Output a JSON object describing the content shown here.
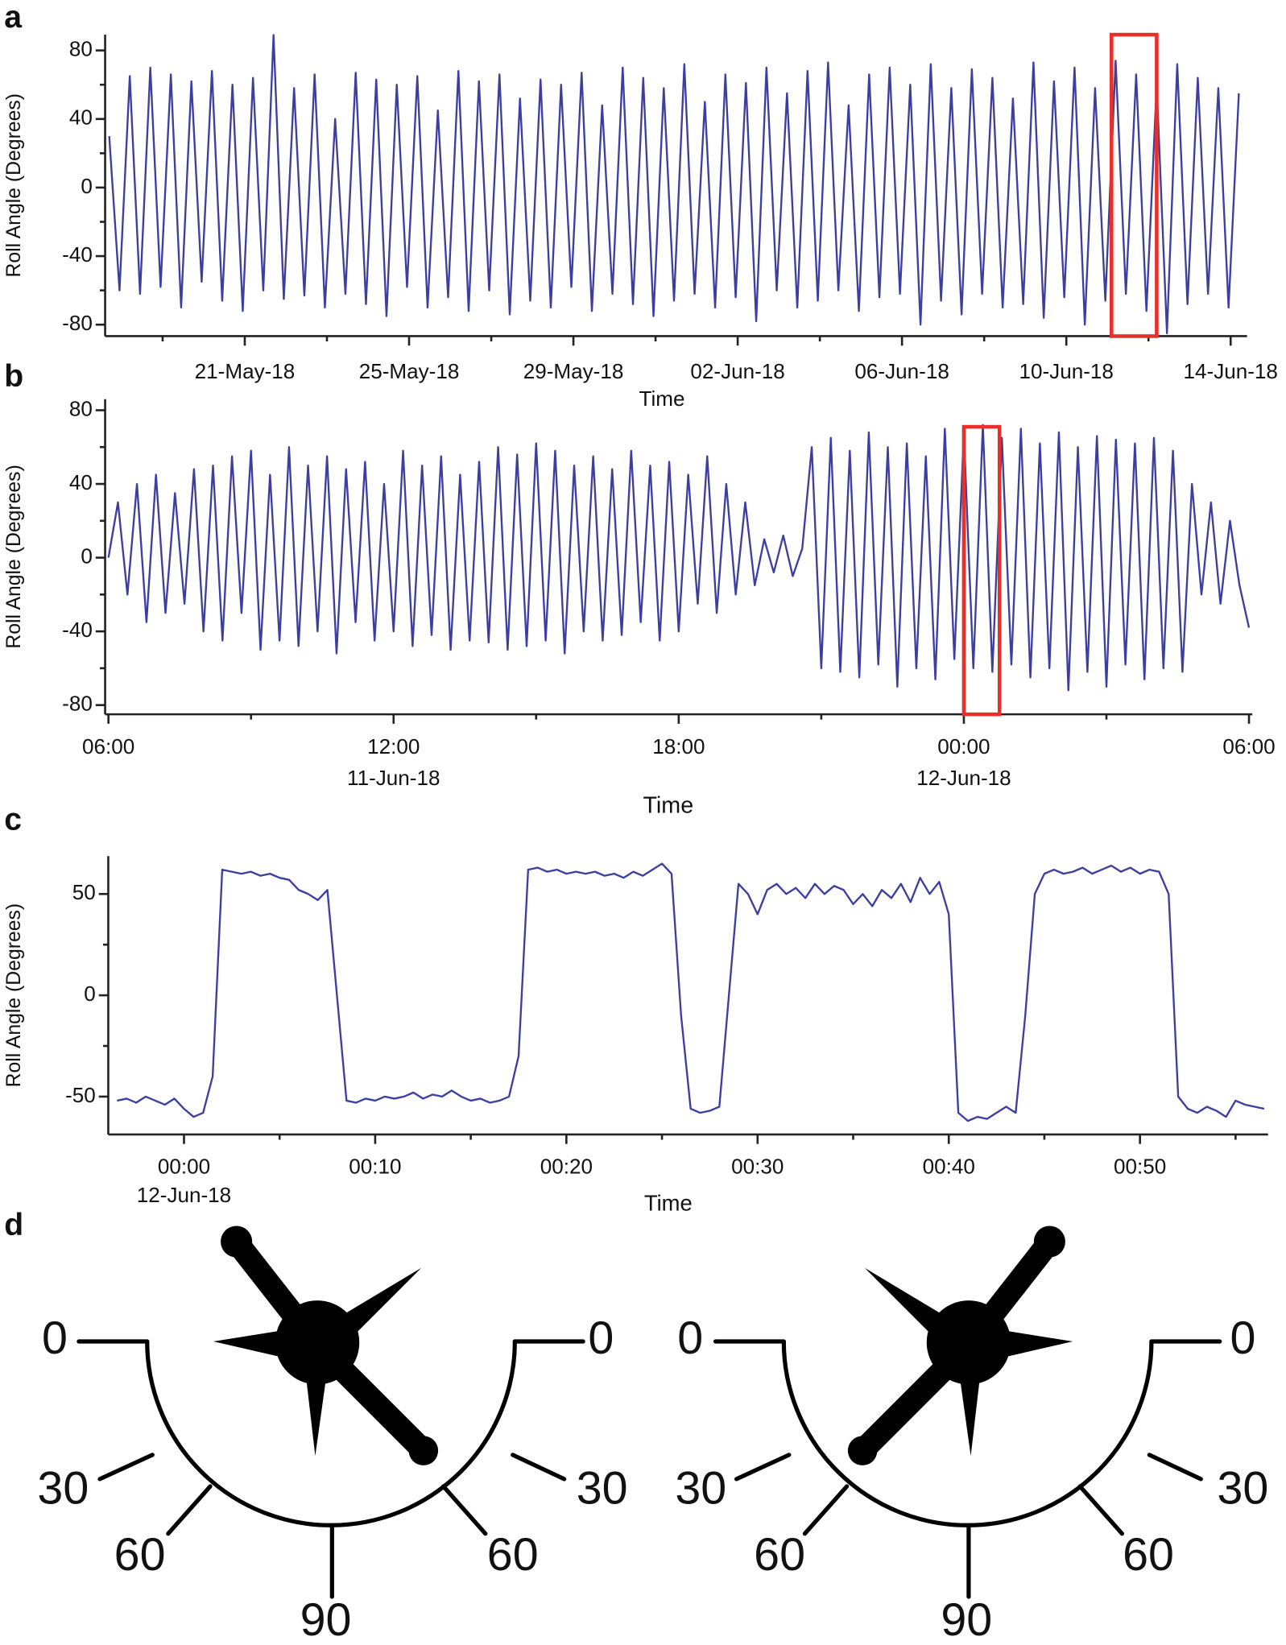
{
  "panel_labels": [
    "a",
    "b",
    "c",
    "d"
  ],
  "chart_data": [
    {
      "type": "line",
      "y_label": "Roll Angle (Degrees)",
      "x_label": "Time",
      "color": "#3c3ea0",
      "xlim": [
        17.6,
        45.4
      ],
      "ylim": [
        -86.7,
        89.2
      ],
      "xticks": [
        {
          "value": 21,
          "label": "21-May-18"
        },
        {
          "value": 25,
          "label": "25-May-18"
        },
        {
          "value": 29,
          "label": "29-May-18"
        },
        {
          "value": 33,
          "label": "02-Jun-18"
        },
        {
          "value": 37,
          "label": "06-Jun-18"
        },
        {
          "value": 41,
          "label": "10-Jun-18"
        },
        {
          "value": 45,
          "label": "14-Jun-18"
        }
      ],
      "xminorticks": [
        19,
        23,
        27,
        31,
        35,
        39,
        43
      ],
      "yticks": [
        -80,
        -40,
        0,
        40,
        80
      ],
      "yminorticks": [
        -60,
        -20,
        20,
        60
      ],
      "highlight": {
        "xlim": [
          42.1,
          43.2
        ],
        "color": "#e8302a"
      },
      "x": [
        17.7,
        17.95,
        18.2,
        18.45,
        18.7,
        18.95,
        19.2,
        19.45,
        19.7,
        19.95,
        20.2,
        20.45,
        20.7,
        20.95,
        21.2,
        21.45,
        21.7,
        21.95,
        22.2,
        22.45,
        22.7,
        22.95,
        23.2,
        23.45,
        23.7,
        23.95,
        24.2,
        24.45,
        24.7,
        24.95,
        25.2,
        25.45,
        25.7,
        25.95,
        26.2,
        26.45,
        26.7,
        26.95,
        27.2,
        27.45,
        27.7,
        27.95,
        28.2,
        28.45,
        28.7,
        28.95,
        29.2,
        29.45,
        29.7,
        29.95,
        30.2,
        30.45,
        30.7,
        30.95,
        31.2,
        31.45,
        31.7,
        31.95,
        32.2,
        32.45,
        32.7,
        32.95,
        33.2,
        33.45,
        33.7,
        33.95,
        34.2,
        34.45,
        34.7,
        34.95,
        35.2,
        35.45,
        35.7,
        35.95,
        36.2,
        36.45,
        36.7,
        36.95,
        37.2,
        37.45,
        37.7,
        37.95,
        38.2,
        38.45,
        38.7,
        38.95,
        39.2,
        39.45,
        39.7,
        39.95,
        40.2,
        40.45,
        40.7,
        40.95,
        41.2,
        41.45,
        41.7,
        41.95,
        42.2,
        42.45,
        42.7,
        42.95,
        43.2,
        43.45,
        43.7,
        43.95,
        44.2,
        44.45,
        44.7,
        44.95,
        45.2
      ],
      "values": [
        30,
        -60,
        65,
        -62,
        70,
        -58,
        66,
        -70,
        62,
        -55,
        68,
        -66,
        60,
        -72,
        64,
        -60,
        89,
        -65,
        58,
        -63,
        66,
        -70,
        40,
        -62,
        67,
        -68,
        63,
        -75,
        60,
        -58,
        65,
        -70,
        45,
        -64,
        68,
        -72,
        62,
        -60,
        66,
        -74,
        52,
        -66,
        63,
        -70,
        60,
        -58,
        67,
        -72,
        48,
        -62,
        70,
        -68,
        64,
        -75,
        58,
        -66,
        72,
        -62,
        50,
        -70,
        66,
        -64,
        61,
        -78,
        70,
        -60,
        55,
        -70,
        68,
        -66,
        73,
        -60,
        48,
        -72,
        66,
        -64,
        70,
        -62,
        60,
        -80,
        72,
        -66,
        58,
        -74,
        69,
        -62,
        64,
        -70,
        52,
        -68,
        73,
        -76,
        62,
        -64,
        70,
        -80,
        58,
        -66,
        74,
        -62,
        66,
        -72,
        60,
        -85,
        72,
        -68,
        64,
        -62,
        58,
        -70,
        55
      ]
    },
    {
      "type": "line",
      "y_label": "Roll Angle (Degrees)",
      "x_label": "Time",
      "color": "#3c3ea0",
      "xlim": [
        5.93,
        30.07
      ],
      "ylim": [
        -85,
        86
      ],
      "xticks": [
        {
          "value": 6,
          "label": "06:00"
        },
        {
          "value": 12,
          "label": "12:00"
        },
        {
          "value": 18,
          "label": "18:00"
        },
        {
          "value": 24,
          "label": "00:00"
        },
        {
          "value": 30,
          "label": "06:00"
        }
      ],
      "date_labels": [
        {
          "value": 12,
          "label": "11-Jun-18"
        },
        {
          "value": 24,
          "label": "12-Jun-18"
        }
      ],
      "xminorticks": [
        9,
        15,
        21,
        27
      ],
      "yticks": [
        -80,
        -40,
        0,
        40,
        80
      ],
      "yminorticks": [
        -60,
        -20,
        20,
        60
      ],
      "highlight": {
        "xlim": [
          24.0,
          24.75
        ],
        "ylim": [
          -85,
          71
        ],
        "color": "#e8302a"
      },
      "x": [
        6,
        6.2,
        6.4,
        6.6,
        6.8,
        7,
        7.2,
        7.4,
        7.6,
        7.8,
        8,
        8.2,
        8.4,
        8.6,
        8.8,
        9,
        9.2,
        9.4,
        9.6,
        9.8,
        10,
        10.2,
        10.4,
        10.6,
        10.8,
        11,
        11.2,
        11.4,
        11.6,
        11.8,
        12,
        12.2,
        12.4,
        12.6,
        12.8,
        13,
        13.2,
        13.4,
        13.6,
        13.8,
        14,
        14.2,
        14.4,
        14.6,
        14.8,
        15,
        15.2,
        15.4,
        15.6,
        15.8,
        16,
        16.2,
        16.4,
        16.6,
        16.8,
        17,
        17.2,
        17.4,
        17.6,
        17.8,
        18,
        18.2,
        18.4,
        18.6,
        18.8,
        19,
        19.2,
        19.4,
        19.6,
        19.8,
        20,
        20.2,
        20.4,
        20.6,
        20.8,
        21,
        21.2,
        21.4,
        21.6,
        21.8,
        22,
        22.2,
        22.4,
        22.6,
        22.8,
        23,
        23.2,
        23.4,
        23.6,
        23.8,
        24,
        24.2,
        24.4,
        24.6,
        24.8,
        25,
        25.2,
        25.4,
        25.6,
        25.8,
        26,
        26.2,
        26.4,
        26.6,
        26.8,
        27,
        27.2,
        27.4,
        27.6,
        27.8,
        28,
        28.2,
        28.4,
        28.6,
        28.8,
        29,
        29.2,
        29.4,
        29.6,
        29.8,
        30
      ],
      "values": [
        0,
        30,
        -20,
        40,
        -35,
        45,
        -30,
        35,
        -25,
        48,
        -40,
        50,
        -45,
        55,
        -30,
        58,
        -50,
        45,
        -45,
        60,
        -48,
        50,
        -40,
        55,
        -52,
        48,
        -35,
        52,
        -45,
        40,
        -40,
        58,
        -48,
        50,
        -42,
        55,
        -50,
        45,
        -45,
        52,
        -46,
        60,
        -50,
        56,
        -48,
        62,
        -45,
        58,
        -52,
        50,
        -40,
        55,
        -45,
        48,
        -42,
        58,
        -35,
        50,
        -45,
        52,
        -40,
        45,
        -25,
        55,
        -30,
        40,
        -20,
        30,
        -15,
        10,
        -8,
        12,
        -10,
        5,
        60,
        -60,
        65,
        -62,
        58,
        -65,
        68,
        -58,
        60,
        -70,
        62,
        -60,
        55,
        -66,
        70,
        -55,
        68,
        -60,
        72,
        -62,
        65,
        -58,
        70,
        -65,
        62,
        -60,
        68,
        -72,
        60,
        -62,
        66,
        -70,
        64,
        -58,
        62,
        -66,
        65,
        -60,
        58,
        -62,
        40,
        -20,
        30,
        -25,
        20,
        -15,
        -38
      ]
    },
    {
      "type": "line",
      "y_label": "Roll Angle (Degrees)",
      "x_label": "Time",
      "color": "#3c3ea0",
      "xlim": [
        -3.96,
        56.7
      ],
      "ylim": [
        -68.7,
        68.7
      ],
      "xticks": [
        {
          "value": 0,
          "label": "00:00"
        },
        {
          "value": 10,
          "label": "00:10"
        },
        {
          "value": 20,
          "label": "00:20"
        },
        {
          "value": 30,
          "label": "00:30"
        },
        {
          "value": 40,
          "label": "00:40"
        },
        {
          "value": 50,
          "label": "00:50"
        }
      ],
      "date_labels": [
        {
          "value": 0,
          "label": "12-Jun-18"
        }
      ],
      "xminorticks": [
        5,
        15,
        25,
        35,
        45,
        55
      ],
      "yticks": [
        -50,
        0,
        50
      ],
      "yminorticks": [
        -25,
        25
      ],
      "x": [
        -3.5,
        -3,
        -2.5,
        -2,
        -1.5,
        -1,
        -0.5,
        0,
        0.5,
        1,
        1.5,
        2,
        2.5,
        3,
        3.5,
        4,
        4.5,
        5,
        5.5,
        6,
        6.5,
        7,
        7.5,
        8,
        8.5,
        9,
        9.5,
        10,
        10.5,
        11,
        11.5,
        12,
        12.5,
        13,
        13.5,
        14,
        14.5,
        15,
        15.5,
        16,
        16.5,
        17,
        17.5,
        18,
        18.5,
        19,
        19.5,
        20,
        20.5,
        21,
        21.5,
        22,
        22.5,
        23,
        23.5,
        24,
        24.5,
        25,
        25.5,
        26,
        26.5,
        27,
        27.5,
        28,
        28.5,
        29,
        29.5,
        30,
        30.5,
        31,
        31.5,
        32,
        32.5,
        33,
        33.5,
        34,
        34.5,
        35,
        35.5,
        36,
        36.5,
        37,
        37.5,
        38,
        38.5,
        39,
        39.5,
        40,
        40.5,
        41,
        41.5,
        42,
        42.5,
        43,
        43.5,
        44,
        44.5,
        45,
        45.5,
        46,
        46.5,
        47,
        47.5,
        48,
        48.5,
        49,
        49.5,
        50,
        50.5,
        51,
        51.5,
        52,
        52.5,
        53,
        53.5,
        54,
        54.5,
        55,
        55.5,
        56,
        56.5
      ],
      "values": [
        -52,
        -51,
        -53,
        -50,
        -52,
        -54,
        -51,
        -56,
        -60,
        -58,
        -40,
        62,
        61,
        60,
        61,
        59,
        60,
        58,
        57,
        52,
        50,
        47,
        52,
        0,
        -52,
        -53,
        -51,
        -52,
        -50,
        -51,
        -50,
        -48,
        -51,
        -49,
        -50,
        -47,
        -50,
        -52,
        -51,
        -53,
        -52,
        -50,
        -30,
        62,
        63,
        61,
        62,
        60,
        61,
        60,
        61,
        59,
        60,
        58,
        61,
        59,
        62,
        65,
        60,
        -10,
        -56,
        -58,
        -57,
        -55,
        0,
        55,
        50,
        40,
        52,
        55,
        50,
        53,
        48,
        55,
        50,
        54,
        52,
        45,
        50,
        44,
        52,
        48,
        55,
        46,
        58,
        50,
        56,
        40,
        -58,
        -62,
        -60,
        -61,
        -58,
        -55,
        -58,
        -10,
        50,
        60,
        62,
        60,
        61,
        63,
        60,
        62,
        64,
        61,
        63,
        60,
        62,
        61,
        50,
        -50,
        -56,
        -58,
        -55,
        -57,
        -60,
        -52,
        -54,
        -55,
        -56
      ]
    }
  ],
  "dials": [
    {
      "labels": [
        "0",
        "0",
        "30",
        "30",
        "60",
        "60",
        "90"
      ]
    },
    {
      "labels": [
        "0",
        "0",
        "30",
        "30",
        "60",
        "60",
        "90"
      ]
    }
  ]
}
